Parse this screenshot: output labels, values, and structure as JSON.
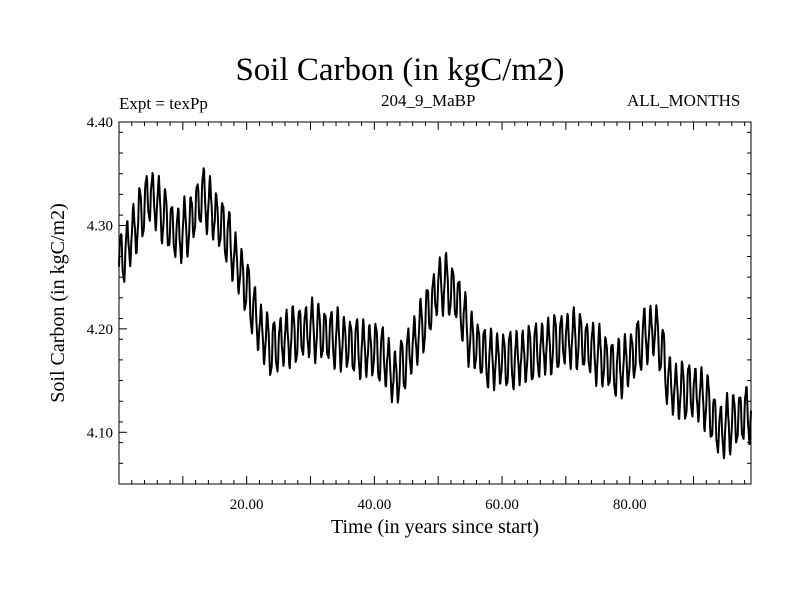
{
  "chart_data": {
    "type": "line",
    "title": "Soil Carbon (in kgC/m2)",
    "subtitle_left": "Expt = texPp",
    "subtitle_center": "204_9_MaBP",
    "subtitle_right": "ALL_MONTHS",
    "xlabel": "Time (in years since start)",
    "ylabel": "Soil Carbon (in kgC/m2)",
    "xlim": [
      0,
      99
    ],
    "ylim": [
      4.05,
      4.4
    ],
    "x_ticks": [
      20,
      40,
      60,
      80
    ],
    "x_tick_labels": [
      "20.00",
      "40.00",
      "60.00",
      "80.00"
    ],
    "y_ticks": [
      4.1,
      4.2,
      4.3,
      4.4
    ],
    "y_tick_labels": [
      "4.10",
      "4.20",
      "4.30",
      "4.40"
    ],
    "seasonal_amplitude": 0.025,
    "series": [
      {
        "name": "Soil Carbon",
        "note": "monthly values; annual mean trend below, seasonal oscillation of about +/-0.025 superimposed",
        "x": [
          0,
          2,
          4,
          5,
          7,
          9,
          11,
          13,
          15,
          17,
          18,
          20,
          22,
          24,
          26,
          30,
          34,
          38,
          40,
          42,
          43,
          45,
          48,
          50,
          51,
          53,
          55,
          58,
          62,
          66,
          70,
          72,
          74,
          78,
          80,
          82,
          84,
          85,
          86,
          87,
          90,
          92,
          94,
          96,
          99
        ],
        "values": [
          4.26,
          4.29,
          4.32,
          4.33,
          4.31,
          4.29,
          4.3,
          4.33,
          4.31,
          4.29,
          4.27,
          4.24,
          4.2,
          4.18,
          4.19,
          4.2,
          4.19,
          4.18,
          4.18,
          4.17,
          4.15,
          4.17,
          4.21,
          4.24,
          4.245,
          4.23,
          4.19,
          4.17,
          4.17,
          4.18,
          4.19,
          4.19,
          4.18,
          4.16,
          4.17,
          4.19,
          4.2,
          4.18,
          4.15,
          4.14,
          4.14,
          4.13,
          4.1,
          4.11,
          4.12
        ]
      }
    ]
  }
}
